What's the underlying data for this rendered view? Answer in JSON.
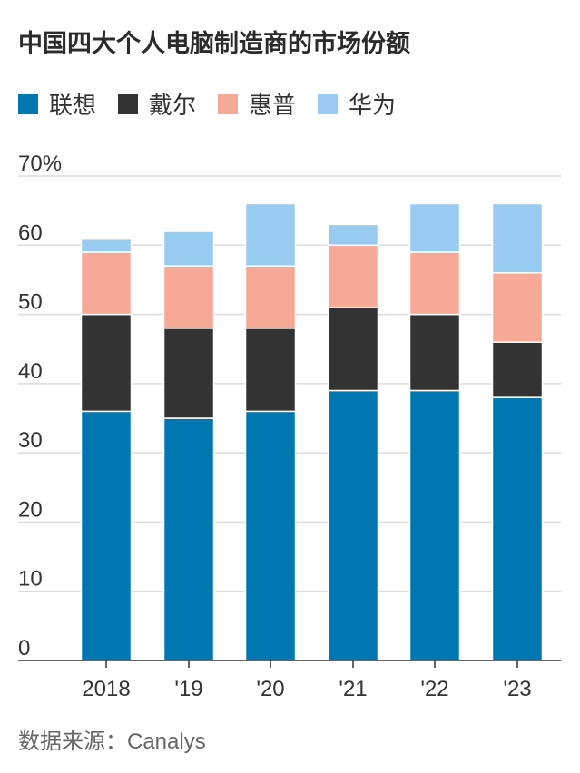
{
  "title": "中国四大个人电脑制造商的市场份额",
  "source": "数据来源：Canalys",
  "chart_data": {
    "type": "bar",
    "stacked": true,
    "categories": [
      "2018",
      "'19",
      "'20",
      "'21",
      "'22",
      "'23"
    ],
    "series": [
      {
        "name": "联想",
        "color": "#0077b0",
        "values": [
          36,
          35,
          36,
          39,
          39,
          38
        ]
      },
      {
        "name": "戴尔",
        "color": "#333333",
        "values": [
          14,
          13,
          12,
          12,
          11,
          8
        ]
      },
      {
        "name": "惠普",
        "color": "#f7a998",
        "values": [
          9,
          9,
          9,
          9,
          9,
          10
        ]
      },
      {
        "name": "华为",
        "color": "#98cbef",
        "values": [
          2,
          5,
          9,
          3,
          7,
          10
        ]
      }
    ],
    "yticks": [
      "0",
      "10",
      "20",
      "30",
      "40",
      "50",
      "60",
      "70%"
    ],
    "ylim": [
      0,
      70
    ],
    "xlabel": "",
    "ylabel": ""
  }
}
